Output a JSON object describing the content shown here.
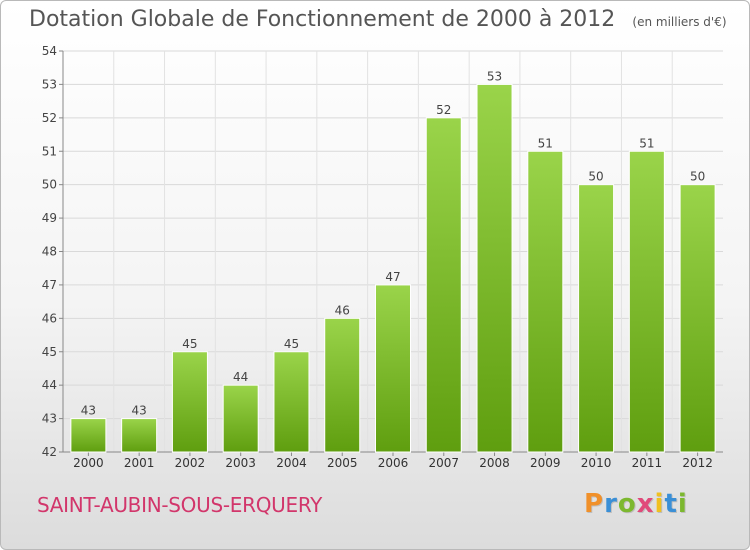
{
  "header": {
    "title": "Dotation Globale de Fonctionnement de 2000 à 2012",
    "unit_note": "(en milliers d'€)"
  },
  "footer": {
    "commune": "SAINT-AUBIN-SOUS-ERQUERY",
    "logo_text": "Proxiti"
  },
  "colors": {
    "bar_light": "#9ad44a",
    "bar_dark": "#5f9e0f",
    "commune": "#d2366b",
    "logo": [
      "#f0902a",
      "#3a8fd6",
      "#7cb82f",
      "#e04a7a",
      "#f0c020",
      "#3a8fd6",
      "#7cb82f"
    ]
  },
  "chart_data": {
    "type": "bar",
    "categories": [
      "2000",
      "2001",
      "2002",
      "2003",
      "2004",
      "2005",
      "2006",
      "2007",
      "2008",
      "2009",
      "2010",
      "2011",
      "2012"
    ],
    "values": [
      43,
      43,
      45,
      44,
      45,
      46,
      47,
      52,
      53,
      51,
      50,
      51,
      50
    ],
    "title": "Dotation Globale de Fonctionnement de 2000 à 2012",
    "subtitle": "(en milliers d'€)",
    "xlabel": "",
    "ylabel": "",
    "ylim": [
      42,
      54
    ],
    "yticks": [
      42,
      43,
      44,
      45,
      46,
      47,
      48,
      49,
      50,
      51,
      52,
      53,
      54
    ],
    "grid": true,
    "legend": "none"
  }
}
